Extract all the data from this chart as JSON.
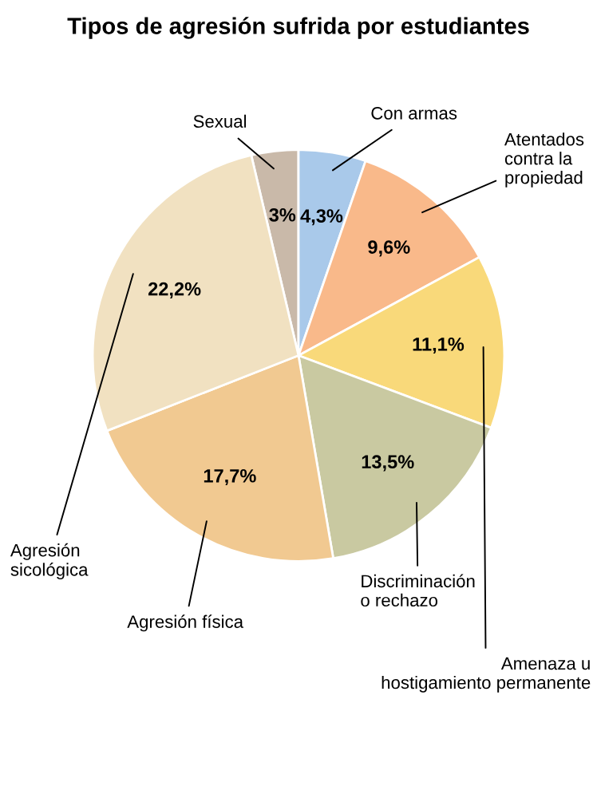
{
  "chart_data": {
    "type": "pie",
    "title": "Tipos de agresión sufrida por estudiantes",
    "categories": [
      "Sexual",
      "Con armas",
      "Atentados\ncontra la\npropiedad",
      "Amenaza u\nhostigamiento permanente",
      "Discriminación\no rechazo",
      "Agresión física",
      "Agresión\nsicológica"
    ],
    "values": [
      3,
      4.3,
      9.6,
      11.1,
      13.5,
      17.7,
      22.2
    ],
    "value_labels": [
      "3%",
      "4,3%",
      "9,6%",
      "11,1%",
      "13,5%",
      "17,7%",
      "22,2%"
    ],
    "colors": [
      "#c9b9a9",
      "#a9c9ea",
      "#f9b98a",
      "#f9d97a",
      "#c9c9a1",
      "#f1c991",
      "#f1e1c1"
    ]
  }
}
